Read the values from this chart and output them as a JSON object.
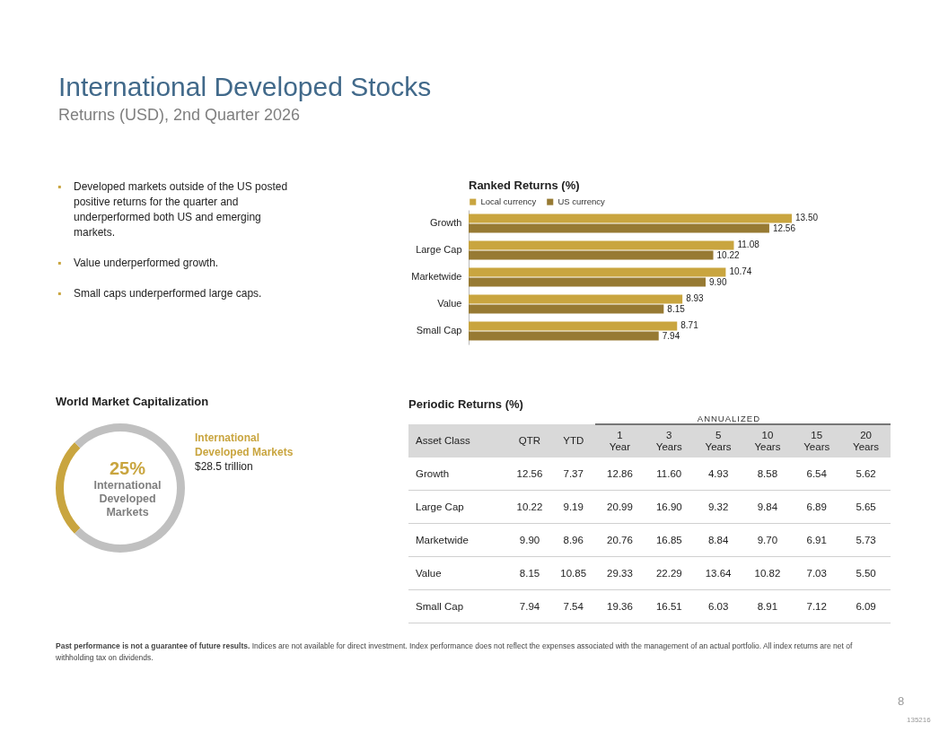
{
  "chart_data": [
    {
      "type": "other",
      "title": "International Developed Stocks",
      "subtitle": "Returns (USD), 2nd Quarter 2026",
      "annotations": [
        "▪ Developed markets outside of the US posted positive returns for the quarter and underperformed both US and emerging markets.",
        "▪ Value underperformed growth.",
        "▪ Small caps underperformed large caps.",
        "Past performance is not a guarantee of future results. Indices are not available for direct investment. Index performance does not reflect the expenses associated with the management of an actual portfolio. All index returns are net of withholding tax on dividends.",
        "8",
        "135216"
      ]
    },
    {
      "type": "bar",
      "orientation": "horizontal",
      "title": "Ranked Returns (%)",
      "legend": "top left",
      "categories": [
        "Growth",
        "Large Cap",
        "Marketwide",
        "Value",
        "Small Cap"
      ],
      "series": [
        {
          "name": "Local currency",
          "color": "#c9a53f",
          "values": [
            13.5,
            11.08,
            10.74,
            8.93,
            8.71
          ],
          "value_labels": [
            "13.50",
            "11.08",
            "10.74",
            "8.93",
            "8.71"
          ]
        },
        {
          "name": "US currency",
          "color": "#977a33",
          "values": [
            12.56,
            10.22,
            9.9,
            8.15,
            7.94
          ],
          "value_labels": [
            "12.56",
            "10.22",
            "9.90",
            "8.15",
            "7.94"
          ]
        }
      ]
    },
    {
      "type": "donut",
      "title": "World Market Capitalization",
      "categories": [
        null,
        null
      ],
      "values": [
        25,
        75
      ],
      "colors": [
        "#c9a53f",
        "#c0c0c0"
      ],
      "annotations": [
        "25%",
        "International Developed Markets",
        "International Developed Markets",
        "$28.5 trillion"
      ]
    },
    {
      "type": "heatmap",
      "title": "Periodic Returns (%)",
      "ylabel": "Asset Class",
      "annotations": [
        "ANNUALIZED"
      ],
      "categories": [
        "QTR",
        "YTD",
        "1 Year",
        "3 Years",
        "5 Years",
        "10 Years",
        "15 Years",
        "20 Years"
      ],
      "y_categories": [
        "Growth",
        "Large Cap",
        "Marketwide",
        "Value",
        "Small Cap"
      ],
      "cells": [
        [
          12.56,
          7.37,
          12.86,
          11.6,
          4.93,
          8.58,
          6.54,
          5.62
        ],
        [
          10.22,
          9.19,
          20.99,
          16.9,
          9.32,
          9.84,
          6.89,
          5.65
        ],
        [
          9.9,
          8.96,
          20.76,
          16.85,
          8.84,
          9.7,
          6.91,
          5.73
        ],
        [
          8.15,
          10.85,
          29.33,
          22.29,
          13.64,
          10.82,
          7.03,
          5.5
        ],
        [
          7.94,
          7.54,
          19.36,
          16.51,
          6.03,
          8.91,
          7.12,
          6.09
        ]
      ],
      "cell_labels": [
        [
          "12.56",
          "7.37",
          "12.86",
          "11.60",
          "4.93",
          "8.58",
          "6.54",
          "5.62"
        ],
        [
          "10.22",
          "9.19",
          "20.99",
          "16.90",
          "9.32",
          "9.84",
          "6.89",
          "5.65"
        ],
        [
          "9.90",
          "8.96",
          "20.76",
          "16.85",
          "8.84",
          "9.70",
          "6.91",
          "5.73"
        ],
        [
          "8.15",
          "10.85",
          "29.33",
          "22.29",
          "13.64",
          "10.82",
          "7.03",
          "5.50"
        ],
        [
          "7.94",
          "7.54",
          "19.36",
          "16.51",
          "6.03",
          "8.91",
          "7.12",
          "6.09"
        ]
      ]
    }
  ]
}
